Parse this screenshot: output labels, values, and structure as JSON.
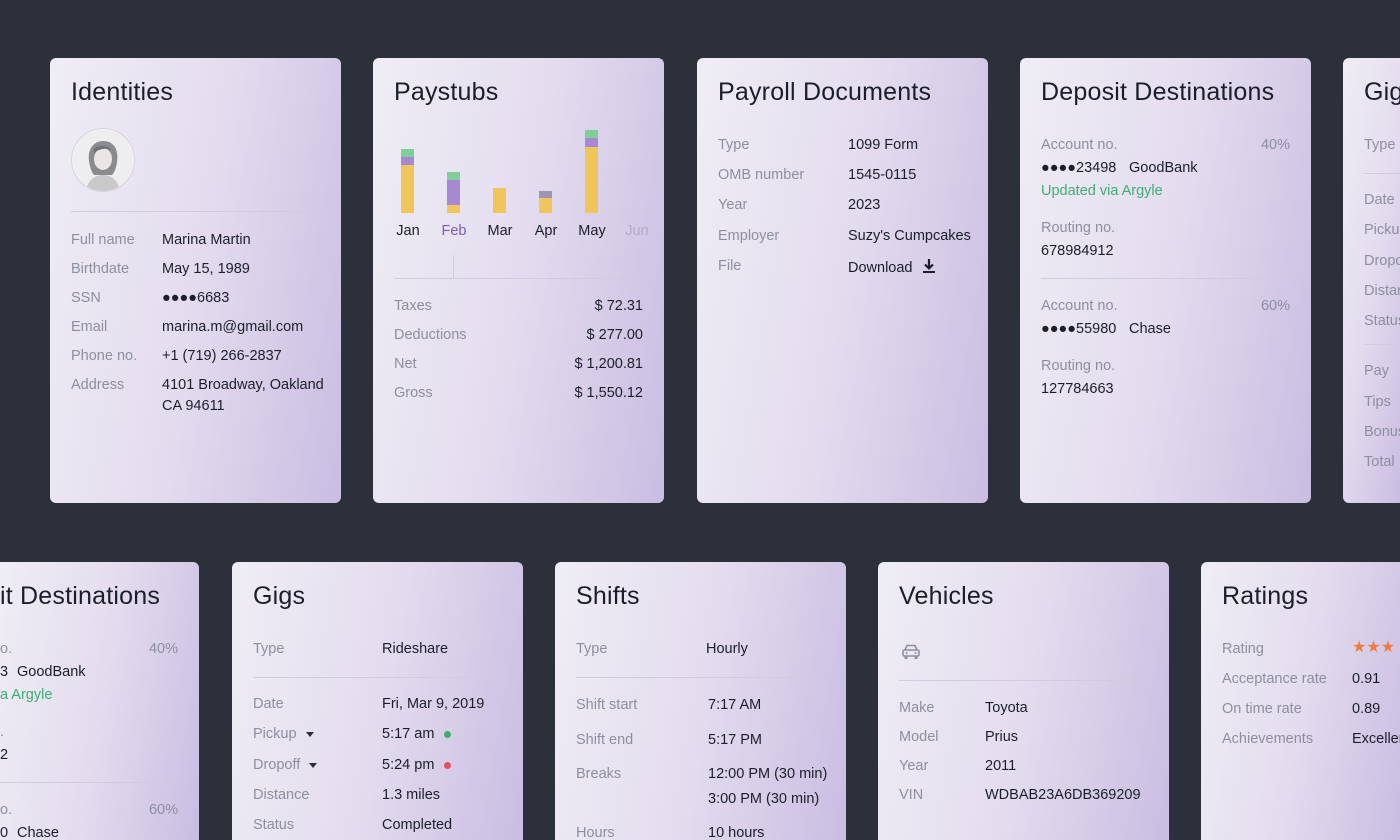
{
  "identities": {
    "title": "Identities",
    "avatar_icon": "portrait-avatar",
    "fields": [
      {
        "label": "Full name",
        "value": "Marina Martin"
      },
      {
        "label": "Birthdate",
        "value": "May 15, 1989"
      },
      {
        "label": "SSN",
        "value": "●●●●6683"
      },
      {
        "label": "Email",
        "value": "marina.m@gmail.com"
      },
      {
        "label": "Phone no.",
        "value": "+1 (719) 266-2837"
      },
      {
        "label": "Address",
        "value": "4101 Broadway, Oakland",
        "value2": "CA 94611"
      }
    ]
  },
  "paystubs": {
    "title": "Paystubs",
    "months": [
      "Jan",
      "Feb",
      "Mar",
      "Apr",
      "May",
      "Jun"
    ],
    "active_month": "Feb",
    "rows": [
      {
        "label": "Taxes",
        "value": "$ 72.31"
      },
      {
        "label": "Deductions",
        "value": "$ 277.00"
      },
      {
        "label": "Net",
        "value": "$ 1,200.81"
      },
      {
        "label": "Gross",
        "value": "$ 1,550.12"
      }
    ],
    "colors": {
      "yellow": "#f0c65a",
      "purple": "#a689d2",
      "green": "#7fcf99",
      "gray": "#9a96b8",
      "active": "#7a5cb8"
    }
  },
  "payroll": {
    "title": "Payroll Documents",
    "fields": [
      {
        "label": "Type",
        "value": "1099 Form"
      },
      {
        "label": "OMB number",
        "value": "1545-0115"
      },
      {
        "label": "Year",
        "value": "2023"
      },
      {
        "label": "Employer",
        "value": "Suzy's Cumpcakes"
      },
      {
        "label": "File",
        "value": "Download"
      }
    ]
  },
  "deposit": {
    "title": "Deposit Destinations",
    "accounts": [
      {
        "acct_label": "Account no.",
        "pct": "40%",
        "acct": "●●●●23498",
        "bank": "GoodBank",
        "note": "Updated via Argyle",
        "routing_label": "Routing no.",
        "routing": "678984912"
      },
      {
        "acct_label": "Account no.",
        "pct": "60%",
        "acct": "●●●●55980",
        "bank": "Chase",
        "routing_label": "Routing no.",
        "routing": "127784663"
      }
    ]
  },
  "gigs_partial": {
    "title": "Gig",
    "labels": [
      "Type",
      "Date",
      "Picku",
      "Dropo",
      "Distar",
      "Status",
      "Pay",
      "Tips",
      "Bonus",
      "Total"
    ]
  },
  "deposit_partial": {
    "title": "it Destinations",
    "acct_label": "o.",
    "pct1": "40%",
    "acct_frag": "3",
    "bank": "GoodBank",
    "note": "a Argyle",
    "routing_frag1": ".",
    "routing_frag2": "2",
    "pct2": "60%",
    "acct_frag2": "0",
    "bank2": "Chase",
    "frag3": "o."
  },
  "gigs": {
    "title": "Gigs",
    "type_label": "Type",
    "type_value": "Rideshare",
    "fields": [
      {
        "label": "Date",
        "value": "Fri, Mar 9, 2019"
      },
      {
        "label": "Pickup",
        "value": "5:17 am"
      },
      {
        "label": "Dropoff",
        "value": "5:24 pm"
      },
      {
        "label": "Distance",
        "value": "1.3 miles"
      },
      {
        "label": "Status",
        "value": "Completed"
      }
    ],
    "pickup_dot_color": "#3fae73",
    "dropoff_dot_color": "#e0505e"
  },
  "shifts": {
    "title": "Shifts",
    "type_label": "Type",
    "type_value": "Hourly",
    "fields": [
      {
        "label": "Shift start",
        "value": "7:17 AM"
      },
      {
        "label": "Shift end",
        "value": "5:17 PM"
      },
      {
        "label": "Breaks",
        "value": "12:00 PM (30 min)",
        "value2": "3:00 PM (30 min)"
      },
      {
        "label": "Hours",
        "value": "10 hours"
      }
    ]
  },
  "vehicles": {
    "title": "Vehicles",
    "icon": "car-icon",
    "fields": [
      {
        "label": "Make",
        "value": "Toyota"
      },
      {
        "label": "Model",
        "value": "Prius"
      },
      {
        "label": "Year",
        "value": "2011"
      },
      {
        "label": "VIN",
        "value": "WDBAB23A6DB369209"
      }
    ]
  },
  "ratings": {
    "title": "Ratings",
    "fields": [
      {
        "label": "Rating",
        "value": "★★★"
      },
      {
        "label": "Acceptance rate",
        "value": "0.91"
      },
      {
        "label": "On time rate",
        "value": "0.89"
      },
      {
        "label": "Achievements",
        "value": "Exceller"
      }
    ]
  }
}
